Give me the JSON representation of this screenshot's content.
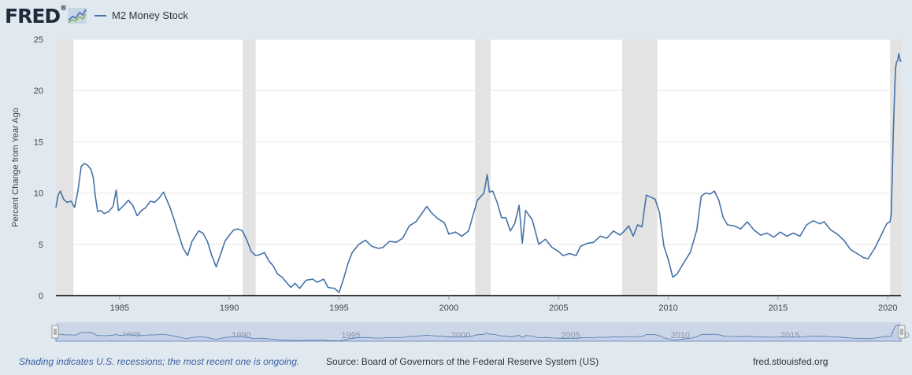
{
  "logo": {
    "text": "FRED",
    "trademark": "®",
    "icon": "chart-line-icon"
  },
  "legend": {
    "label": "M2 Money Stock",
    "color": "#4572a7"
  },
  "footer": {
    "note": "Shading indicates U.S. recessions; the most recent one is ongoing.",
    "source": "Source: Board of Governors of the Federal Reserve System (US)",
    "site": "fred.stlouisfed.org"
  },
  "colors": {
    "line": "#4572a7",
    "recession": "#e3e3e3",
    "grid": "#e6e6e6",
    "plot_bg": "#ffffff",
    "navigator_fill": "#c4cfea"
  },
  "chart_data": {
    "type": "line",
    "title": "",
    "xlabel": "",
    "ylabel": "Percent Change from Year Ago",
    "xlim": [
      1982.1,
      2020.6
    ],
    "ylim": [
      0,
      25
    ],
    "y_ticks": [
      0,
      5,
      10,
      15,
      20,
      25
    ],
    "x_ticks": [
      1985,
      1990,
      1995,
      2000,
      2005,
      2010,
      2015,
      2020
    ],
    "grid": true,
    "legend_position": "top-left",
    "recessions": [
      [
        1982.1,
        1982.9
      ],
      [
        1990.6,
        1991.2
      ],
      [
        2001.2,
        2001.9
      ],
      [
        2007.9,
        2009.5
      ],
      [
        2020.1,
        2020.6
      ]
    ],
    "series": [
      {
        "name": "M2 Money Stock",
        "color": "#4572a7",
        "x": [
          1982.1,
          1982.2,
          1982.3,
          1982.45,
          1982.6,
          1982.8,
          1982.95,
          1983.1,
          1983.25,
          1983.4,
          1983.55,
          1983.7,
          1983.8,
          1983.9,
          1984.0,
          1984.15,
          1984.3,
          1984.5,
          1984.7,
          1984.85,
          1984.95,
          1985.2,
          1985.4,
          1985.6,
          1985.8,
          1986.0,
          1986.2,
          1986.4,
          1986.6,
          1986.8,
          1987.0,
          1987.1,
          1987.3,
          1987.5,
          1987.7,
          1987.9,
          1988.1,
          1988.3,
          1988.6,
          1988.8,
          1989.0,
          1989.2,
          1989.4,
          1989.6,
          1989.8,
          1990.0,
          1990.2,
          1990.4,
          1990.6,
          1990.8,
          1991.0,
          1991.2,
          1991.4,
          1991.6,
          1991.8,
          1992.0,
          1992.2,
          1992.4,
          1992.6,
          1992.8,
          1993.0,
          1993.2,
          1993.5,
          1993.8,
          1994.0,
          1994.3,
          1994.5,
          1994.8,
          1995.0,
          1995.2,
          1995.4,
          1995.6,
          1995.9,
          1996.2,
          1996.5,
          1996.8,
          1997.0,
          1997.3,
          1997.6,
          1997.9,
          1998.2,
          1998.5,
          1998.8,
          1999.0,
          1999.2,
          1999.5,
          1999.8,
          2000.0,
          2000.3,
          2000.6,
          2000.9,
          2001.1,
          2001.3,
          2001.6,
          2001.75,
          2001.85,
          2002.0,
          2002.2,
          2002.4,
          2002.6,
          2002.8,
          2003.0,
          2003.2,
          2003.35,
          2003.5,
          2003.8,
          2004.1,
          2004.4,
          2004.7,
          2005.0,
          2005.2,
          2005.5,
          2005.8,
          2006.0,
          2006.3,
          2006.6,
          2006.9,
          2007.2,
          2007.5,
          2007.8,
          2008.0,
          2008.2,
          2008.4,
          2008.6,
          2008.8,
          2009.0,
          2009.2,
          2009.4,
          2009.6,
          2009.8,
          2010.0,
          2010.2,
          2010.4,
          2010.7,
          2011.0,
          2011.3,
          2011.5,
          2011.7,
          2011.9,
          2012.1,
          2012.3,
          2012.5,
          2012.7,
          2013.0,
          2013.3,
          2013.6,
          2013.9,
          2014.2,
          2014.5,
          2014.8,
          2015.1,
          2015.4,
          2015.7,
          2016.0,
          2016.3,
          2016.6,
          2016.9,
          2017.1,
          2017.4,
          2017.7,
          2018.0,
          2018.3,
          2018.6,
          2018.9,
          2019.1,
          2019.4,
          2019.7,
          2019.95,
          2020.1,
          2020.15,
          2020.2,
          2020.25,
          2020.3,
          2020.35,
          2020.4,
          2020.45,
          2020.5,
          2020.55,
          2020.6
        ],
        "y": [
          8.6,
          9.8,
          10.2,
          9.4,
          9.1,
          9.2,
          8.6,
          10.2,
          12.6,
          12.9,
          12.7,
          12.3,
          11.5,
          9.6,
          8.2,
          8.3,
          8.0,
          8.2,
          8.7,
          10.3,
          8.3,
          8.8,
          9.3,
          8.8,
          7.8,
          8.3,
          8.6,
          9.2,
          9.1,
          9.5,
          10.1,
          9.6,
          8.6,
          7.3,
          5.9,
          4.6,
          3.9,
          5.3,
          6.3,
          6.1,
          5.3,
          3.9,
          2.8,
          4.0,
          5.3,
          5.9,
          6.4,
          6.5,
          6.3,
          5.4,
          4.3,
          3.9,
          4.0,
          4.2,
          3.4,
          2.9,
          2.1,
          1.8,
          1.3,
          0.8,
          1.2,
          0.7,
          1.5,
          1.6,
          1.3,
          1.6,
          0.8,
          0.7,
          0.3,
          1.6,
          3.1,
          4.2,
          5.0,
          5.4,
          4.8,
          4.6,
          4.7,
          5.3,
          5.2,
          5.6,
          6.8,
          7.2,
          8.1,
          8.7,
          8.1,
          7.5,
          7.1,
          6.0,
          6.2,
          5.8,
          6.3,
          7.8,
          9.3,
          10.0,
          11.8,
          10.1,
          10.2,
          9.1,
          7.6,
          7.6,
          6.3,
          7.0,
          8.8,
          5.1,
          8.3,
          7.4,
          5.0,
          5.5,
          4.7,
          4.3,
          3.9,
          4.1,
          3.9,
          4.8,
          5.1,
          5.2,
          5.8,
          5.6,
          6.3,
          5.9,
          6.3,
          6.8,
          5.8,
          6.9,
          6.7,
          9.8,
          9.6,
          9.4,
          8.1,
          4.8,
          3.5,
          1.8,
          2.1,
          3.2,
          4.2,
          6.4,
          9.7,
          10.0,
          9.9,
          10.2,
          9.3,
          7.6,
          6.9,
          6.8,
          6.5,
          7.2,
          6.4,
          5.9,
          6.1,
          5.7,
          6.2,
          5.8,
          6.1,
          5.8,
          6.9,
          7.3,
          7.0,
          7.2,
          6.4,
          6.0,
          5.4,
          4.5,
          4.1,
          3.7,
          3.6,
          4.6,
          5.9,
          7.0,
          7.2,
          7.8,
          11.4,
          15.7,
          19.1,
          22.1,
          22.8,
          22.9,
          23.6,
          23.1,
          22.8
        ]
      }
    ]
  }
}
